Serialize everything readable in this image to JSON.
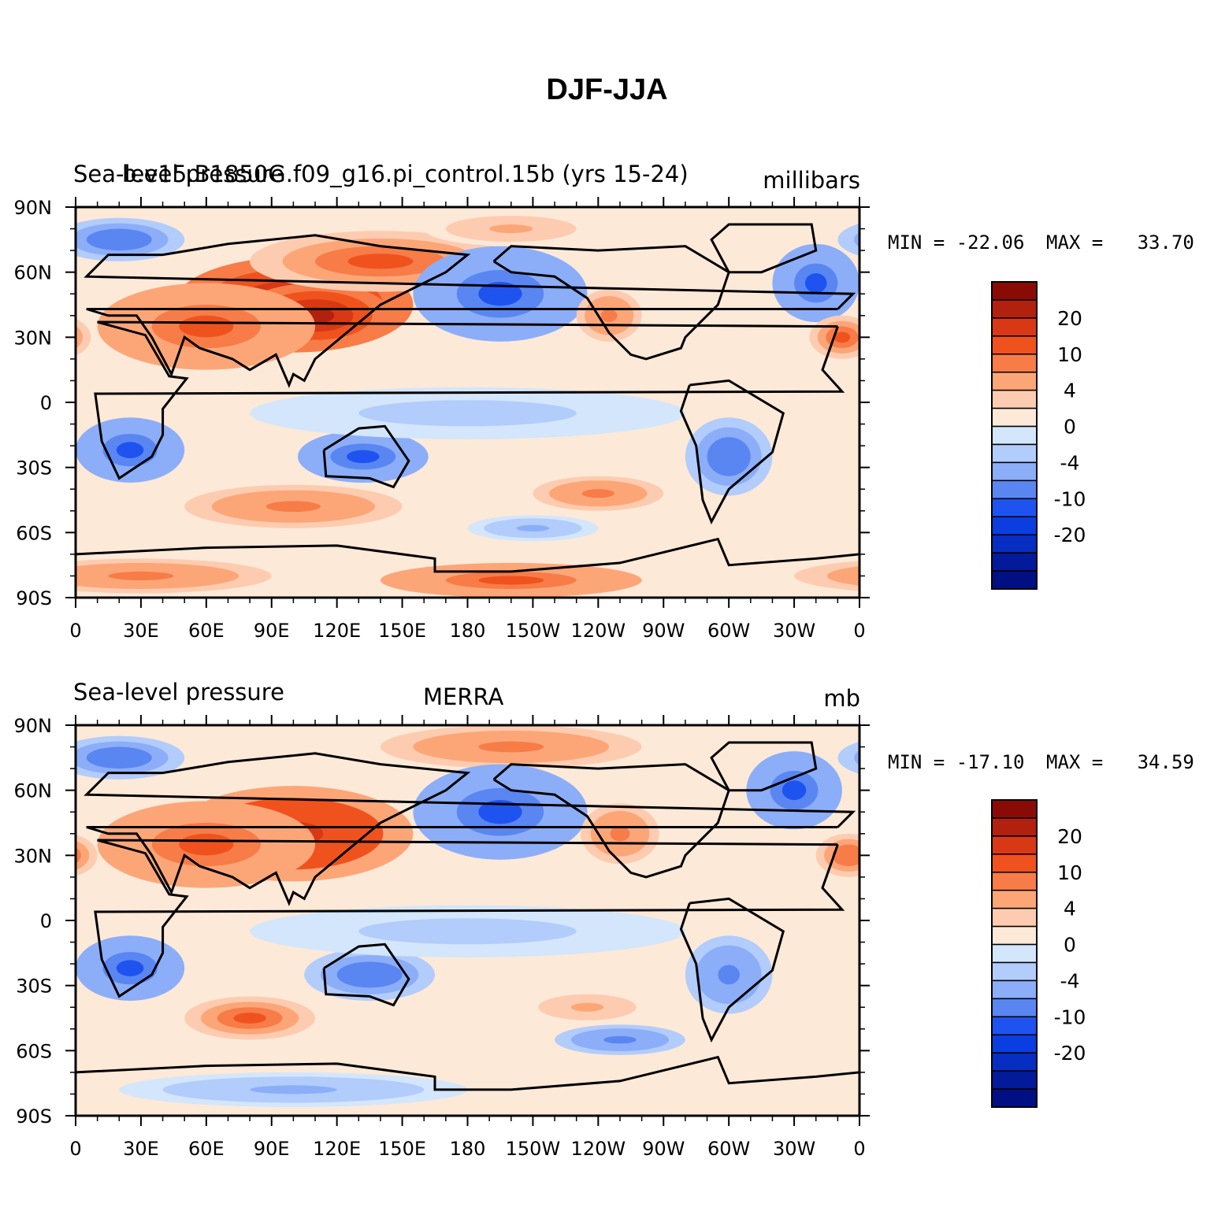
{
  "title": "DJF-JJA",
  "panels": [
    {
      "left_label": "Sea-level pressure",
      "center_label": "b.e15.B1850G.f09_g16.pi_control.15b (yrs 15-24)",
      "right_label": "millibars",
      "min_label": "MIN = -22.06",
      "max_label": "MAX =   33.70"
    },
    {
      "left_label": "Sea-level pressure",
      "center_label": "MERRA",
      "right_label": "mb",
      "min_label": "MIN = -17.10",
      "max_label": "MAX =   34.59"
    }
  ],
  "colorbar": {
    "colors": [
      "#8a0b05",
      "#b2200e",
      "#d93815",
      "#f0521e",
      "#f77c48",
      "#fca678",
      "#fdccb0",
      "#fde9d8",
      "#d3e6fb",
      "#b2ccfb",
      "#8caef8",
      "#5a86f2",
      "#1f53f0",
      "#0a3ee0",
      "#062ec2",
      "#031a9a",
      "#000f82"
    ],
    "labels": [
      "20",
      "10",
      "4",
      "0",
      "-4",
      "-10",
      "-20"
    ]
  },
  "x_ticks": [
    "0",
    "30E",
    "60E",
    "90E",
    "120E",
    "150E",
    "180",
    "150W",
    "120W",
    "90W",
    "60W",
    "30W",
    "0"
  ],
  "y_ticks": [
    "90N",
    "60N",
    "30N",
    "0",
    "30S",
    "60S",
    "90S"
  ],
  "chart_data": [
    {
      "type": "heatmap",
      "title": "DJF-JJA",
      "xlabel": "",
      "ylabel": "",
      "variable": "Sea-level pressure",
      "source": "b.e15.B1850G.f09_g16.pi_control.15b (yrs 15-24)",
      "units": "millibars",
      "min": -22.06,
      "max": 33.7,
      "xlim": [
        0,
        360
      ],
      "ylim": [
        -90,
        90
      ],
      "features": [
        {
          "lon": 100,
          "lat": 45,
          "value": 28
        },
        {
          "lon": 200,
          "lat": 47,
          "value": -20
        },
        {
          "lon": 340,
          "lat": 55,
          "value": -16
        },
        {
          "lon": 350,
          "lat": 32,
          "value": 12
        },
        {
          "lon": 240,
          "lat": 38,
          "value": 8
        },
        {
          "lon": 135,
          "lat": -25,
          "value": -12
        },
        {
          "lon": 25,
          "lat": -20,
          "value": -12
        },
        {
          "lon": 300,
          "lat": -25,
          "value": -10
        },
        {
          "lon": 100,
          "lat": -50,
          "value": 8
        },
        {
          "lon": 240,
          "lat": -42,
          "value": 8
        },
        {
          "lon": 210,
          "lat": -58,
          "value": -5
        },
        {
          "lon": 200,
          "lat": -80,
          "value": 12
        },
        {
          "lon": 0,
          "lat": 75,
          "value": -10
        }
      ]
    },
    {
      "type": "heatmap",
      "title": "DJF-JJA",
      "xlabel": "",
      "ylabel": "",
      "variable": "Sea-level pressure",
      "source": "MERRA",
      "units": "mb",
      "min": -17.1,
      "max": 34.59,
      "xlim": [
        0,
        360
      ],
      "ylim": [
        -90,
        90
      ],
      "features": [
        {
          "lon": 90,
          "lat": 35,
          "value": 25
        },
        {
          "lon": 195,
          "lat": 48,
          "value": -20
        },
        {
          "lon": 330,
          "lat": 60,
          "value": -14
        },
        {
          "lon": 355,
          "lat": 30,
          "value": 10
        },
        {
          "lon": 250,
          "lat": 40,
          "value": 8
        },
        {
          "lon": 135,
          "lat": -25,
          "value": -10
        },
        {
          "lon": 25,
          "lat": -22,
          "value": -12
        },
        {
          "lon": 300,
          "lat": -25,
          "value": -8
        },
        {
          "lon": 80,
          "lat": -45,
          "value": 10
        },
        {
          "lon": 235,
          "lat": -40,
          "value": 4
        },
        {
          "lon": 250,
          "lat": -55,
          "value": -8
        },
        {
          "lon": 200,
          "lat": 80,
          "value": 8
        }
      ]
    }
  ]
}
